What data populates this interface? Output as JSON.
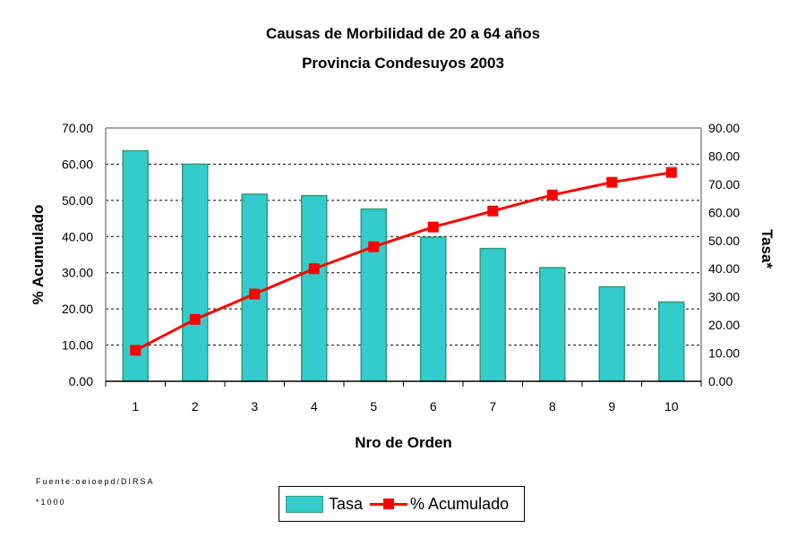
{
  "chart_data": {
    "type": "bar+line",
    "title": "Causas de Morbilidad de 20 a 64  años",
    "subtitle": "Provincia Condesuyos 2003",
    "xlabel": "Nro de Orden",
    "ylabel_left": "% Acumulado",
    "ylabel_right": "Tasa*",
    "categories": [
      "1",
      "2",
      "3",
      "4",
      "5",
      "6",
      "7",
      "8",
      "9",
      "10"
    ],
    "ylim_left": [
      0,
      70
    ],
    "ylim_right": [
      0,
      90
    ],
    "left_ticks": [
      "0.00",
      "10.00",
      "20.00",
      "30.00",
      "40.00",
      "50.00",
      "60.00",
      "70.00"
    ],
    "right_ticks": [
      "0.00",
      "10.00",
      "20.00",
      "30.00",
      "40.00",
      "50.00",
      "60.00",
      "70.00",
      "80.00",
      "90.00"
    ],
    "grid": true,
    "legend_position": "bottom",
    "series": [
      {
        "name": "Tasa",
        "type": "bar",
        "axis": "left",
        "color": "#33CCCC",
        "values": [
          63.7,
          60.0,
          51.7,
          51.3,
          47.6,
          39.8,
          36.7,
          31.4,
          26.1,
          21.9
        ]
      },
      {
        "name": "% Acumulado",
        "type": "line",
        "axis": "right",
        "color": "#FF0000",
        "values": [
          11.0,
          22.0,
          31.0,
          40.0,
          47.8,
          54.8,
          60.5,
          66.2,
          70.7,
          74.2
        ]
      }
    ]
  },
  "footnotes": {
    "source": "Fuente:oeioepd/DIRSA",
    "scale": "*1000"
  },
  "legend": {
    "bar_label": "Tasa",
    "line_label": "% Acumulado"
  }
}
